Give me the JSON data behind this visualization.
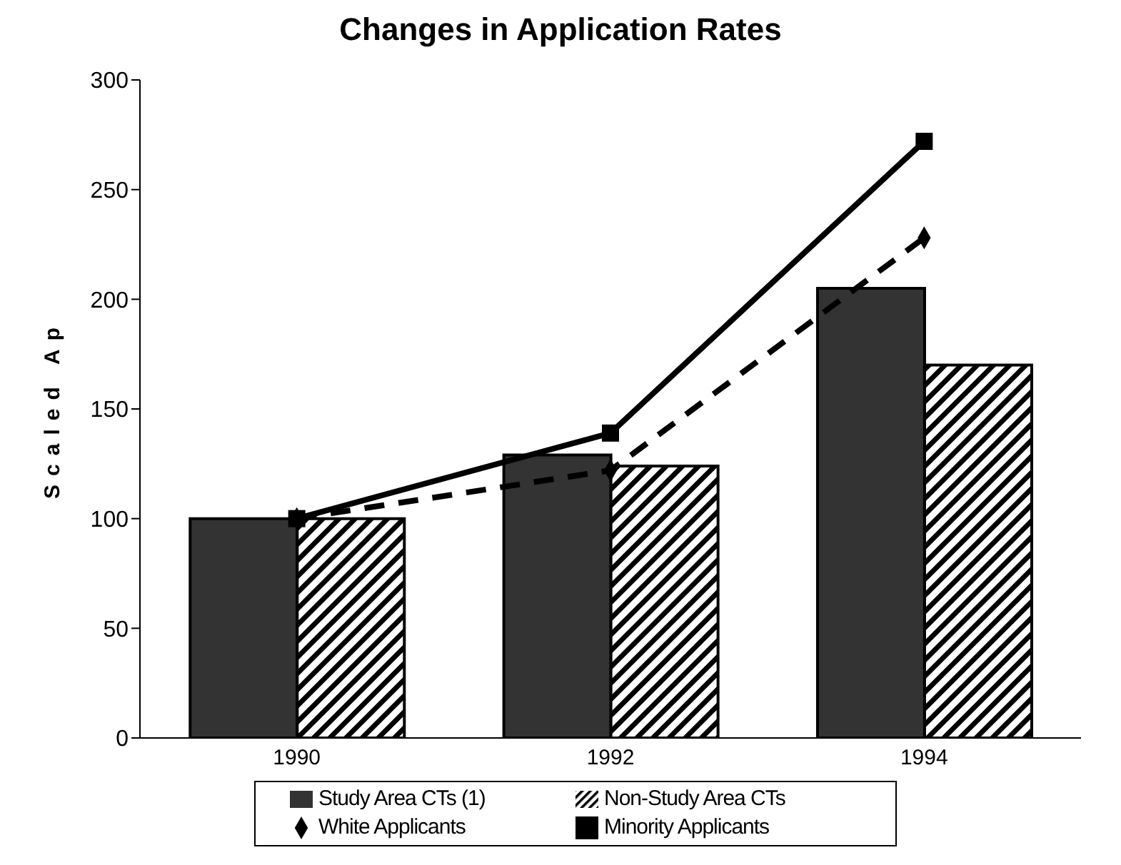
{
  "chart_data": {
    "type": "bar",
    "title": "Changes in Application Rates",
    "ylabel": "Scaled Ap",
    "categories": [
      "1990",
      "1992",
      "1994"
    ],
    "ylim": [
      0,
      300
    ],
    "yticks": [
      0,
      50,
      100,
      150,
      200,
      250,
      300
    ],
    "grid": false,
    "legend": "bottom",
    "series": [
      {
        "name": "Study Area CTs (1)",
        "color": "#333333",
        "values": [
          100,
          129,
          205
        ]
      },
      {
        "name": "Non-Study Area CTs",
        "color": "#000000",
        "values": [
          100,
          124,
          170
        ]
      },
      {
        "name": "White Applicants",
        "type": "line",
        "color": "#000000",
        "line_style": "dashed",
        "marker": "diamond",
        "values": [
          100,
          122,
          228
        ]
      },
      {
        "name": "Minority Applicants",
        "type": "line",
        "color": "#000000",
        "line_style": "solid",
        "marker": "square",
        "values": [
          100,
          139,
          272
        ]
      }
    ]
  }
}
